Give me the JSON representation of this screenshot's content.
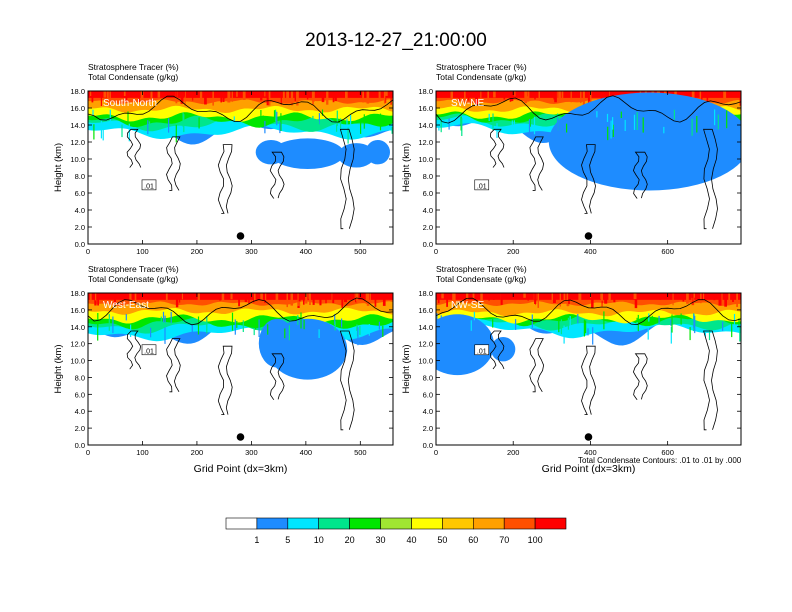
{
  "title": "2013-12-27_21:00:00",
  "panel_field_line1": "Stratosphere Tracer   (%)",
  "panel_field_line2": "Total Condensate   (g/kg)",
  "y_axis_label": "Height (km)",
  "x_axis_label": "Grid Point (dx=3km)",
  "contour_note": "Total Condensate Contours: .01 to .01 by .000",
  "contour_label": ".01",
  "colorbar": {
    "levels": [
      "1",
      "5",
      "10",
      "20",
      "30",
      "40",
      "50",
      "60",
      "70",
      "100"
    ],
    "colors": [
      "#ffffff",
      "#1e8cff",
      "#00e6ff",
      "#00e68c",
      "#00e600",
      "#a0e632",
      "#ffff00",
      "#ffc800",
      "#ffa000",
      "#ff5000",
      "#ff0000"
    ]
  },
  "chart_data": [
    {
      "type": "heatmap",
      "title": "South-North",
      "xlabel": "",
      "ylabel": "Height (km)",
      "xlim": [
        0,
        560
      ],
      "ylim": [
        0,
        18
      ],
      "xticks": [
        0,
        100,
        200,
        300,
        400,
        500
      ],
      "yticks": [
        "0.0",
        "2.0",
        "4.0",
        "6.0",
        "8.0",
        "10.0",
        "12.0",
        "14.0",
        "16.0",
        "18.0"
      ],
      "marker_x": 280
    },
    {
      "type": "heatmap",
      "title": "SW-NE",
      "xlabel": "",
      "ylabel": "Height (km)",
      "xlim": [
        0,
        790
      ],
      "ylim": [
        0,
        18
      ],
      "xticks": [
        0,
        200,
        400,
        600
      ],
      "yticks": [
        "0.0",
        "2.0",
        "4.0",
        "6.0",
        "8.0",
        "10.0",
        "12.0",
        "14.0",
        "16.0",
        "18.0"
      ],
      "marker_x": 395
    },
    {
      "type": "heatmap",
      "title": "West-East",
      "xlabel": "Grid Point (dx=3km)",
      "ylabel": "Height (km)",
      "xlim": [
        0,
        560
      ],
      "ylim": [
        0,
        18
      ],
      "xticks": [
        0,
        100,
        200,
        300,
        400,
        500
      ],
      "yticks": [
        "0.0",
        "2.0",
        "4.0",
        "6.0",
        "8.0",
        "10.0",
        "12.0",
        "14.0",
        "16.0",
        "18.0"
      ],
      "marker_x": 280
    },
    {
      "type": "heatmap",
      "title": "NW-SE",
      "xlabel": "Grid Point (dx=3km)",
      "ylabel": "Height (km)",
      "xlim": [
        0,
        790
      ],
      "ylim": [
        0,
        18
      ],
      "xticks": [
        0,
        200,
        400,
        600
      ],
      "yticks": [
        "0.0",
        "2.0",
        "4.0",
        "6.0",
        "8.0",
        "10.0",
        "12.0",
        "14.0",
        "16.0",
        "18.0"
      ],
      "marker_x": 395
    }
  ]
}
